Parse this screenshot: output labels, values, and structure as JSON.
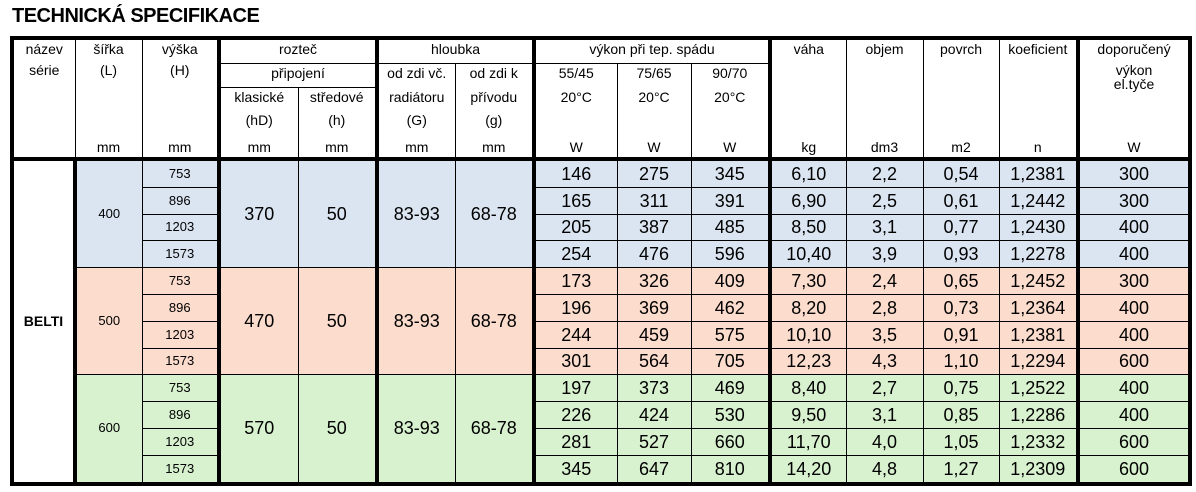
{
  "title": "TECHNICKÁ SPECIFIKACE",
  "colors": {
    "group_400": "#dbe5f1",
    "group_500": "#fbdccd",
    "group_600": "#d8f1cf"
  },
  "header": {
    "name": [
      "název",
      "série"
    ],
    "width": [
      "šířka",
      "(L)",
      "mm"
    ],
    "height": [
      "výška",
      "(H)",
      "mm"
    ],
    "spacing": {
      "title": "rozteč",
      "sub": "připojení",
      "classic": [
        "klasické",
        "(hD)",
        "mm"
      ],
      "center": [
        "středové",
        "(h)",
        "mm"
      ]
    },
    "depth": {
      "title": "hloubka",
      "wall_rad": [
        "od zdi vč.",
        "radiátoru",
        "(G)",
        "mm"
      ],
      "wall_inlet": [
        "od zdi k",
        "přívodu",
        "(g)",
        "mm"
      ]
    },
    "output": {
      "title": "výkon při tep.  spádu",
      "cols": [
        [
          "55/45",
          "20°C",
          "W"
        ],
        [
          "75/65",
          "20°C",
          "W"
        ],
        [
          "90/70",
          "20°C",
          "W"
        ]
      ]
    },
    "weight": [
      "váha",
      "kg"
    ],
    "volume": [
      "objem",
      "dm3"
    ],
    "surface": [
      "povrch",
      "m2"
    ],
    "coef": [
      "koeficient",
      "n"
    ],
    "rod": [
      "doporučený",
      "výkon",
      "el.tyče",
      "W"
    ]
  },
  "series": "BELTI",
  "groups": [
    {
      "width": "400",
      "hD": "370",
      "h": "50",
      "G": "83-93",
      "g": "68-78",
      "color": "#dbe5f1",
      "rows": [
        [
          "753",
          "146",
          "275",
          "345",
          "6,10",
          "2,2",
          "0,54",
          "1,2381",
          "300"
        ],
        [
          "896",
          "165",
          "311",
          "391",
          "6,90",
          "2,5",
          "0,61",
          "1,2442",
          "300"
        ],
        [
          "1203",
          "205",
          "387",
          "485",
          "8,50",
          "3,1",
          "0,77",
          "1,2430",
          "400"
        ],
        [
          "1573",
          "254",
          "476",
          "596",
          "10,40",
          "3,9",
          "0,93",
          "1,2278",
          "400"
        ]
      ]
    },
    {
      "width": "500",
      "hD": "470",
      "h": "50",
      "G": "83-93",
      "g": "68-78",
      "color": "#fbdccd",
      "rows": [
        [
          "753",
          "173",
          "326",
          "409",
          "7,30",
          "2,4",
          "0,65",
          "1,2452",
          "300"
        ],
        [
          "896",
          "196",
          "369",
          "462",
          "8,20",
          "2,8",
          "0,73",
          "1,2364",
          "400"
        ],
        [
          "1203",
          "244",
          "459",
          "575",
          "10,10",
          "3,5",
          "0,91",
          "1,2381",
          "400"
        ],
        [
          "1573",
          "301",
          "564",
          "705",
          "12,23",
          "4,3",
          "1,10",
          "1,2294",
          "600"
        ]
      ]
    },
    {
      "width": "600",
      "hD": "570",
      "h": "50",
      "G": "83-93",
      "g": "68-78",
      "color": "#d8f1cf",
      "rows": [
        [
          "753",
          "197",
          "373",
          "469",
          "8,40",
          "2,7",
          "0,75",
          "1,2522",
          "400"
        ],
        [
          "896",
          "226",
          "424",
          "530",
          "9,50",
          "3,1",
          "0,85",
          "1,2286",
          "400"
        ],
        [
          "1203",
          "281",
          "527",
          "660",
          "11,70",
          "4,0",
          "1,05",
          "1,2332",
          "600"
        ],
        [
          "1573",
          "345",
          "647",
          "810",
          "14,20",
          "4,8",
          "1,27",
          "1,2309",
          "600"
        ]
      ]
    }
  ]
}
